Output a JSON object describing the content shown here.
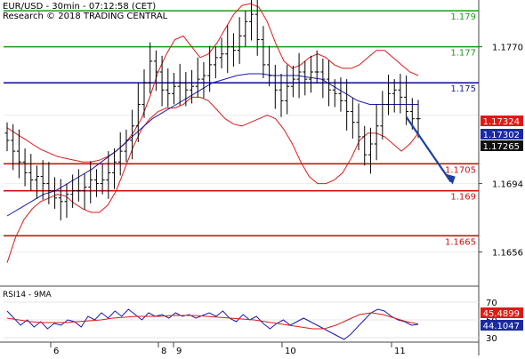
{
  "header": {
    "line1": "EUR/USD - 30min - 07:12:58 (CET)",
    "line2": "Research © 2018 TRADING CENTRAL"
  },
  "rsi_title": "RSI14 - 9MA",
  "colors": {
    "green_level": "#1a9a1a",
    "blue_level": "#1a1aa0",
    "red_level": "#cc1111",
    "bollinger": "#dd1a1a",
    "ma": "#1a1ab0",
    "arrow": "#1f3fa0",
    "price_box_red": "#e01818",
    "price_box_blue": "#1a2aa0",
    "price_box_dark": "#111111",
    "rsi_line": "#1a1ab0",
    "rsi_ma": "#dd1a1a"
  },
  "chart_data": [
    {
      "type": "candlestick",
      "title": "EUR/USD - 30min",
      "ylim": [
        1.1638,
        1.1795
      ],
      "y_ticks": [
        "1.1770",
        "1.1694",
        "1.1656"
      ],
      "x_ticks": [
        "6",
        "8",
        "9",
        "10",
        "11"
      ],
      "levels": [
        {
          "value": "1.179",
          "kind": "resistance",
          "color": "green"
        },
        {
          "value": "1.177",
          "kind": "resistance",
          "color": "green"
        },
        {
          "value": "1.175",
          "kind": "pivot",
          "color": "blue"
        },
        {
          "value": "1.1705",
          "kind": "support",
          "color": "red"
        },
        {
          "value": "1.169",
          "kind": "support",
          "color": "red"
        },
        {
          "value": "1.1665",
          "kind": "support",
          "color": "red"
        }
      ],
      "price_tags": [
        {
          "label": "1.17324",
          "color": "red"
        },
        {
          "label": "1.17302",
          "color": "blue"
        },
        {
          "label": "1.17265",
          "color": "dark"
        }
      ],
      "arrow": {
        "from": {
          "x_index": 67,
          "y": 1.1731
        },
        "to": {
          "x_index": 70,
          "y": 1.1694
        },
        "direction": "down"
      },
      "series": [
        {
          "name": "close",
          "values": [
            1.1718,
            1.1712,
            1.1706,
            1.17,
            1.1696,
            1.1698,
            1.1694,
            1.169,
            1.1686,
            1.1684,
            1.1688,
            1.169,
            1.169,
            1.1692,
            1.1696,
            1.1694,
            1.1696,
            1.17,
            1.1706,
            1.1712,
            1.1718,
            1.1726,
            1.1738,
            1.175,
            1.1762,
            1.1756,
            1.1746,
            1.1744,
            1.1748,
            1.175,
            1.1746,
            1.1748,
            1.1752,
            1.1754,
            1.176,
            1.1764,
            1.1766,
            1.177,
            1.1768,
            1.1776,
            1.1784,
            1.1788,
            1.1774,
            1.176,
            1.1754,
            1.1746,
            1.174,
            1.1748,
            1.1752,
            1.1756,
            1.1752,
            1.1756,
            1.1756,
            1.1752,
            1.1746,
            1.1744,
            1.174,
            1.1734,
            1.1728,
            1.172,
            1.171,
            1.1716,
            1.1726,
            1.1738,
            1.1744,
            1.1746,
            1.1742,
            1.1734,
            1.173,
            1.173
          ]
        },
        {
          "name": "bollinger_upper",
          "values": [
            1.1725,
            1.1722,
            1.1719,
            1.1716,
            1.1713,
            1.1711,
            1.1709,
            1.1708,
            1.1707,
            1.1706,
            1.1706,
            1.1707,
            1.1709,
            1.1712,
            1.1716,
            1.1722,
            1.173,
            1.1742,
            1.1756,
            1.1766,
            1.1774,
            1.1776,
            1.177,
            1.1764,
            1.1766,
            1.1772,
            1.178,
            1.1788,
            1.1793,
            1.1794,
            1.1792,
            1.1784,
            1.1772,
            1.1762,
            1.1758,
            1.176,
            1.1764,
            1.1766,
            1.1764,
            1.176,
            1.1758,
            1.1758,
            1.176,
            1.1764,
            1.1768,
            1.1768,
            1.1764,
            1.176,
            1.1756,
            1.1754
          ]
        },
        {
          "name": "bollinger_lower",
          "values": [
            1.165,
            1.1664,
            1.1674,
            1.168,
            1.1684,
            1.1686,
            1.1688,
            1.1687,
            1.1683,
            1.168,
            1.1678,
            1.1678,
            1.1682,
            1.169,
            1.1702,
            1.1714,
            1.1724,
            1.173,
            1.1734,
            1.1736,
            1.1736,
            1.1738,
            1.1742,
            1.1742,
            1.174,
            1.1735,
            1.173,
            1.1727,
            1.1726,
            1.1728,
            1.173,
            1.1732,
            1.173,
            1.1724,
            1.1716,
            1.1706,
            1.1698,
            1.1694,
            1.1694,
            1.1696,
            1.17,
            1.1708,
            1.1718,
            1.1722,
            1.1722,
            1.172,
            1.1716,
            1.1712,
            1.1716,
            1.1722
          ]
        },
        {
          "name": "moving_average",
          "values": [
            1.1676,
            1.168,
            1.1684,
            1.1688,
            1.169,
            1.1694,
            1.1698,
            1.1702,
            1.1707,
            1.1712,
            1.1718,
            1.1724,
            1.173,
            1.1734,
            1.1738,
            1.1742,
            1.1746,
            1.175,
            1.1752,
            1.1754,
            1.1755,
            1.1755,
            1.1754,
            1.1754,
            1.1754,
            1.1753,
            1.1752,
            1.1748,
            1.1744,
            1.174,
            1.1738,
            1.1738,
            1.1738,
            1.1738,
            1.1738
          ]
        }
      ]
    },
    {
      "type": "line",
      "title": "RSI14 - 9MA",
      "ylim": [
        26,
        82
      ],
      "y_ticks": [
        "70",
        "50",
        "30"
      ],
      "value_tags": [
        {
          "label": "45.4899",
          "color": "red"
        },
        {
          "label": "44.1047",
          "color": "blue"
        }
      ],
      "series": [
        {
          "name": "rsi",
          "values": [
            60,
            52,
            44,
            50,
            42,
            48,
            40,
            46,
            44,
            50,
            48,
            42,
            54,
            50,
            58,
            52,
            60,
            54,
            62,
            56,
            50,
            58,
            54,
            56,
            52,
            58,
            54,
            56,
            52,
            55,
            58,
            54,
            60,
            52,
            48,
            56,
            50,
            54,
            46,
            40,
            46,
            50,
            44,
            48,
            52,
            48,
            44,
            40,
            36,
            32,
            28,
            34,
            42,
            50,
            58,
            62,
            60,
            54,
            50,
            48,
            44,
            45
          ]
        },
        {
          "name": "rsi_ma",
          "values": [
            52,
            50,
            48,
            47,
            47,
            47,
            48,
            49,
            50,
            52,
            53,
            54,
            54,
            54,
            55,
            55,
            55,
            54,
            53,
            52,
            51,
            50,
            48,
            46,
            44,
            42,
            40,
            40,
            44,
            50,
            56,
            58,
            56,
            52,
            48,
            45.5
          ]
        }
      ]
    }
  ]
}
